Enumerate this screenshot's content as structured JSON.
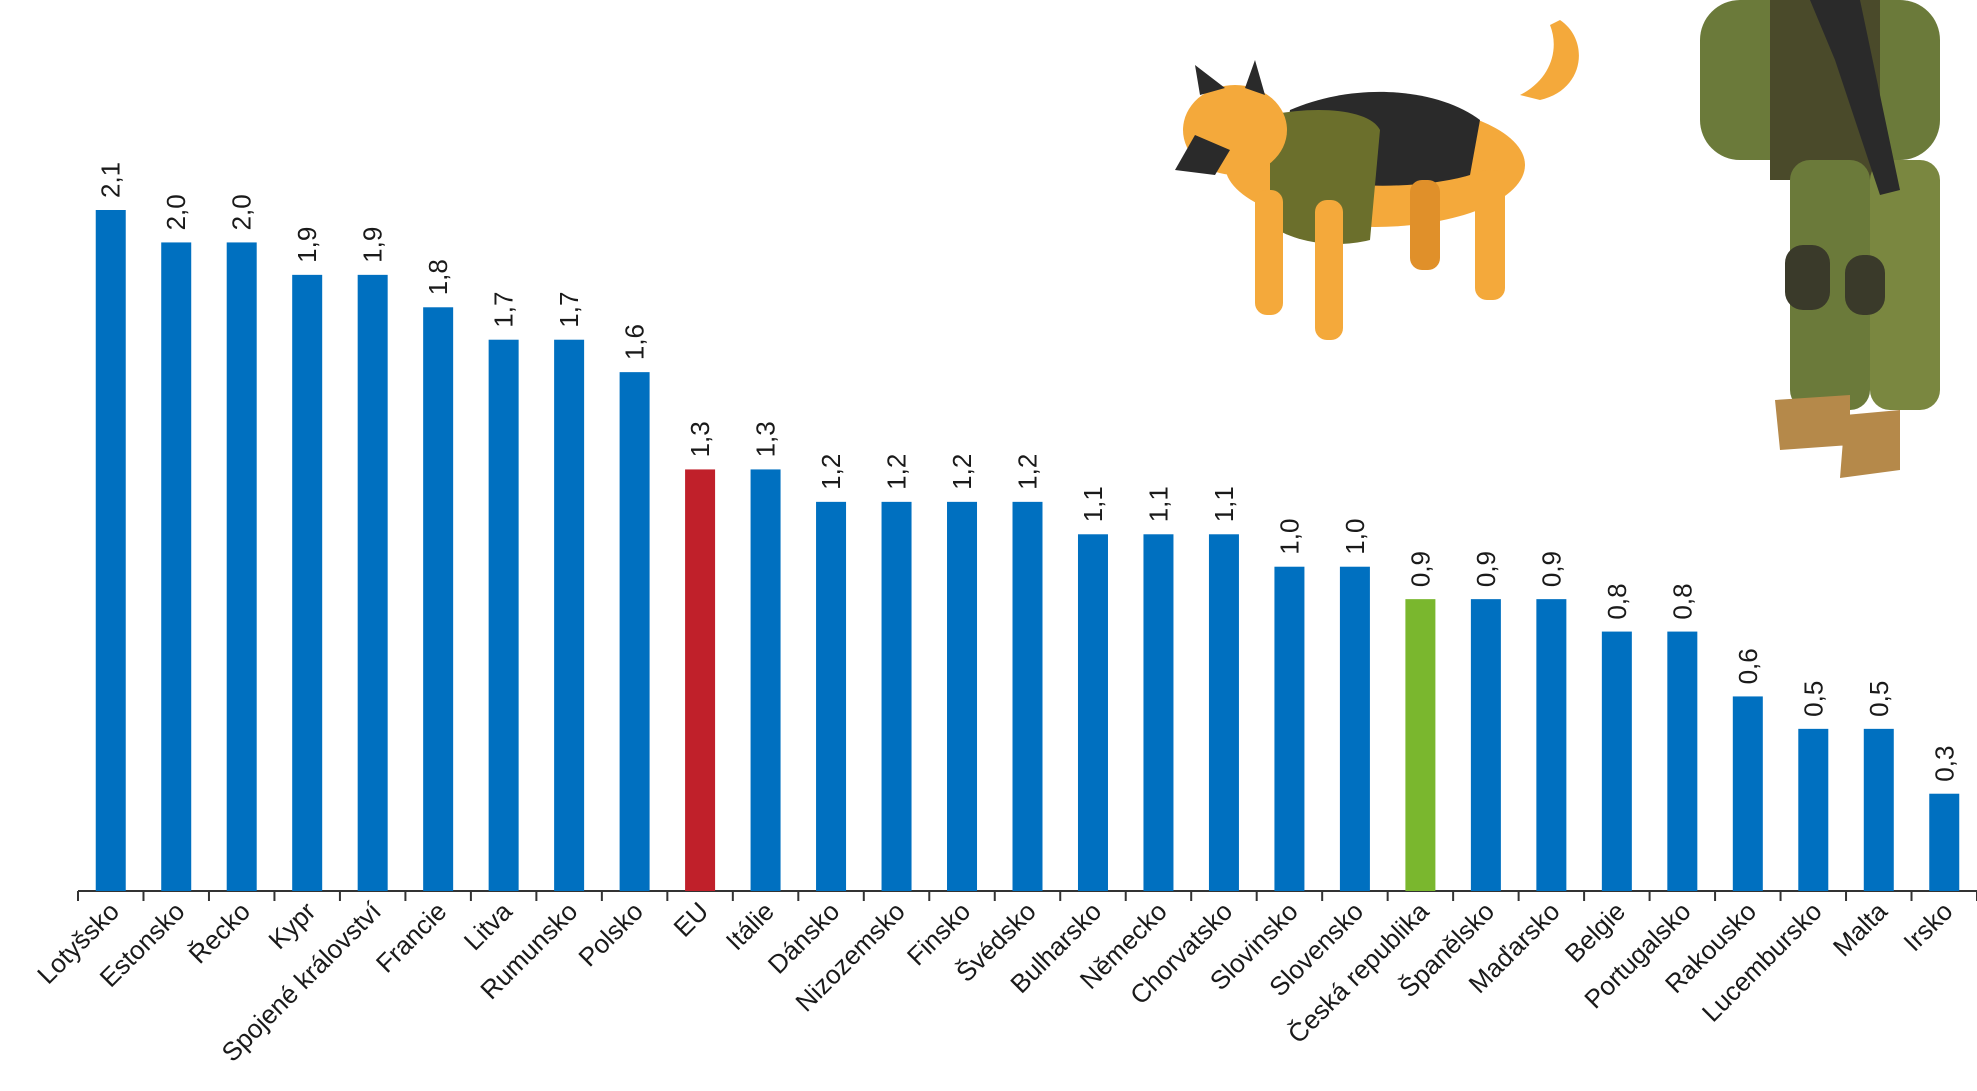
{
  "chart_data": {
    "type": "bar",
    "categories": [
      "Lotyšsko",
      "Estonsko",
      "Řecko",
      "Kypr",
      "Spojené království",
      "Francie",
      "Litva",
      "Rumunsko",
      "Polsko",
      "EU",
      "Itálie",
      "Dánsko",
      "Nizozemsko",
      "Finsko",
      "Švédsko",
      "Bulharsko",
      "Německo",
      "Chorvatsko",
      "Slovinsko",
      "Slovensko",
      "Česká republika",
      "Španělsko",
      "Maďarsko",
      "Belgie",
      "Portugalsko",
      "Rakousko",
      "Lucembursko",
      "Malta",
      "Irsko"
    ],
    "values": [
      2.1,
      2.0,
      2.0,
      1.9,
      1.9,
      1.8,
      1.7,
      1.7,
      1.6,
      1.3,
      1.3,
      1.2,
      1.2,
      1.2,
      1.2,
      1.1,
      1.1,
      1.1,
      1.0,
      1.0,
      0.9,
      0.9,
      0.9,
      0.8,
      0.8,
      0.6,
      0.5,
      0.5,
      0.3
    ],
    "value_labels": [
      "2,1",
      "2,0",
      "2,0",
      "1,9",
      "1,9",
      "1,8",
      "1,7",
      "1,7",
      "1,6",
      "1,3",
      "1,3",
      "1,2",
      "1,2",
      "1,2",
      "1,2",
      "1,1",
      "1,1",
      "1,1",
      "1,0",
      "1,0",
      "0,9",
      "0,9",
      "0,9",
      "0,8",
      "0,8",
      "0,6",
      "0,5",
      "0,5",
      "0,3"
    ],
    "colors": [
      "#0070c0",
      "#0070c0",
      "#0070c0",
      "#0070c0",
      "#0070c0",
      "#0070c0",
      "#0070c0",
      "#0070c0",
      "#0070c0",
      "#c0202a",
      "#0070c0",
      "#0070c0",
      "#0070c0",
      "#0070c0",
      "#0070c0",
      "#0070c0",
      "#0070c0",
      "#0070c0",
      "#0070c0",
      "#0070c0",
      "#7ab72e",
      "#0070c0",
      "#0070c0",
      "#0070c0",
      "#0070c0",
      "#0070c0",
      "#0070c0",
      "#0070c0",
      "#0070c0"
    ]
  }
}
